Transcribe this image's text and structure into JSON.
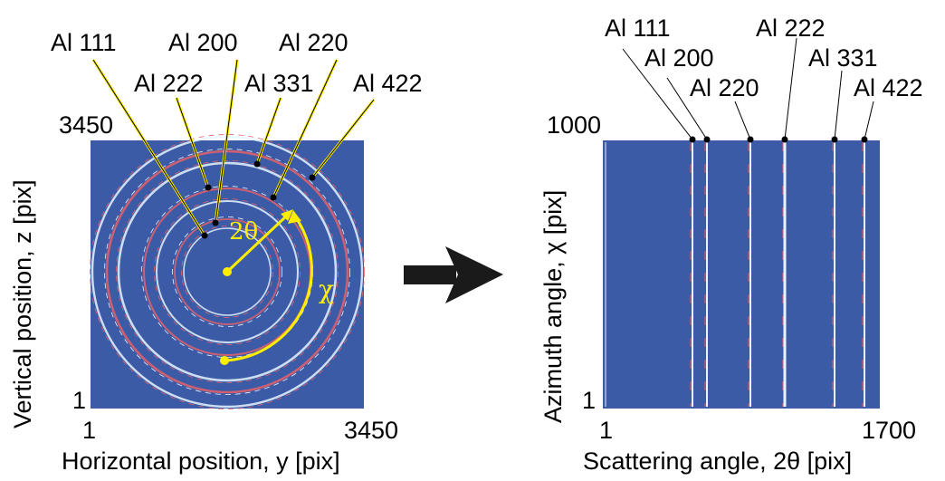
{
  "left_panel": {
    "x_label": "Horizontal position, y [pix]",
    "y_label": "Vertical position, z [pix]",
    "x_min": "1",
    "x_max": "3450",
    "y_min": "1",
    "y_max": "3450",
    "angle_2theta": "2θ",
    "angle_chi": "χ",
    "ring_labels": [
      "Al 111",
      "Al 200",
      "Al 220",
      "Al 222",
      "Al 331",
      "Al 422"
    ]
  },
  "right_panel": {
    "x_label": "Scattering angle, 2θ  [pix]",
    "y_label": "Azimuth angle, χ [pix]",
    "x_min": "1",
    "x_max": "1700",
    "y_min": "1",
    "y_max": "1000",
    "line_labels": [
      "Al 111",
      "Al 200",
      "Al 220",
      "Al 222",
      "Al 331",
      "Al 422"
    ]
  },
  "colors": {
    "background": "#3b5ba6",
    "ring": "#e8f4ff",
    "peak": "#e8606a",
    "highlight": "#ffee00"
  }
}
